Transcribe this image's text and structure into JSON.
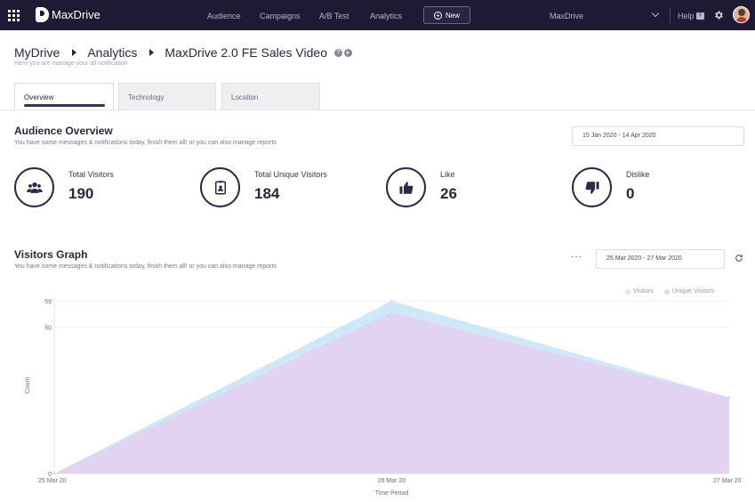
{
  "topbar": {
    "app_name": "MaxDrive",
    "nav": [
      "Audience",
      "Campaigns",
      "A/B Test",
      "Analytics"
    ],
    "new_label": "New",
    "project": "MaxDrive",
    "help_label": "Help"
  },
  "header": {
    "breadcrumb": [
      "MyDrive",
      "Analytics",
      "MaxDrive 2.0 FE Sales Video"
    ],
    "subtitle": "Here you are manage your all notification"
  },
  "tabs": [
    "Overview",
    "Technology",
    "Location"
  ],
  "audience": {
    "title": "Audience Overview",
    "subtitle": "You have some messages & notifications today, finish them all! or you can also manage reports",
    "date_range": "15 Jan 2020 - 14 Apr 2020",
    "stats": [
      {
        "label": "Total Visitors",
        "value": "190",
        "icon": "users-icon"
      },
      {
        "label": "Total Unique Visitors",
        "value": "184",
        "icon": "id-badge-icon"
      },
      {
        "label": "Like",
        "value": "26",
        "icon": "thumbs-up-icon"
      },
      {
        "label": "Dislike",
        "value": "0",
        "icon": "thumbs-down-icon"
      }
    ]
  },
  "graph": {
    "title": "Visitors Graph",
    "subtitle": "You have some messages & notifications today, finish them all! or you can also manage reports",
    "date_range": "25 Mar 2020 - 27 Mar 2020",
    "more_label": "···"
  },
  "chart_data": {
    "type": "area",
    "x": [
      "25 Mar 20",
      "26 Mar 20",
      "27 Mar 20"
    ],
    "series": [
      {
        "name": "Visitors",
        "values": [
          0,
          59,
          26
        ],
        "color": "#cfe8f8"
      },
      {
        "name": "Unique Visitors",
        "values": [
          0,
          55,
          26
        ],
        "color": "#e2d3f3"
      }
    ],
    "yticks": [
      0,
      50,
      59
    ],
    "ylim": [
      0,
      59
    ],
    "xlabel": "Time Period",
    "ylabel": "Count",
    "legend": "top-right"
  }
}
